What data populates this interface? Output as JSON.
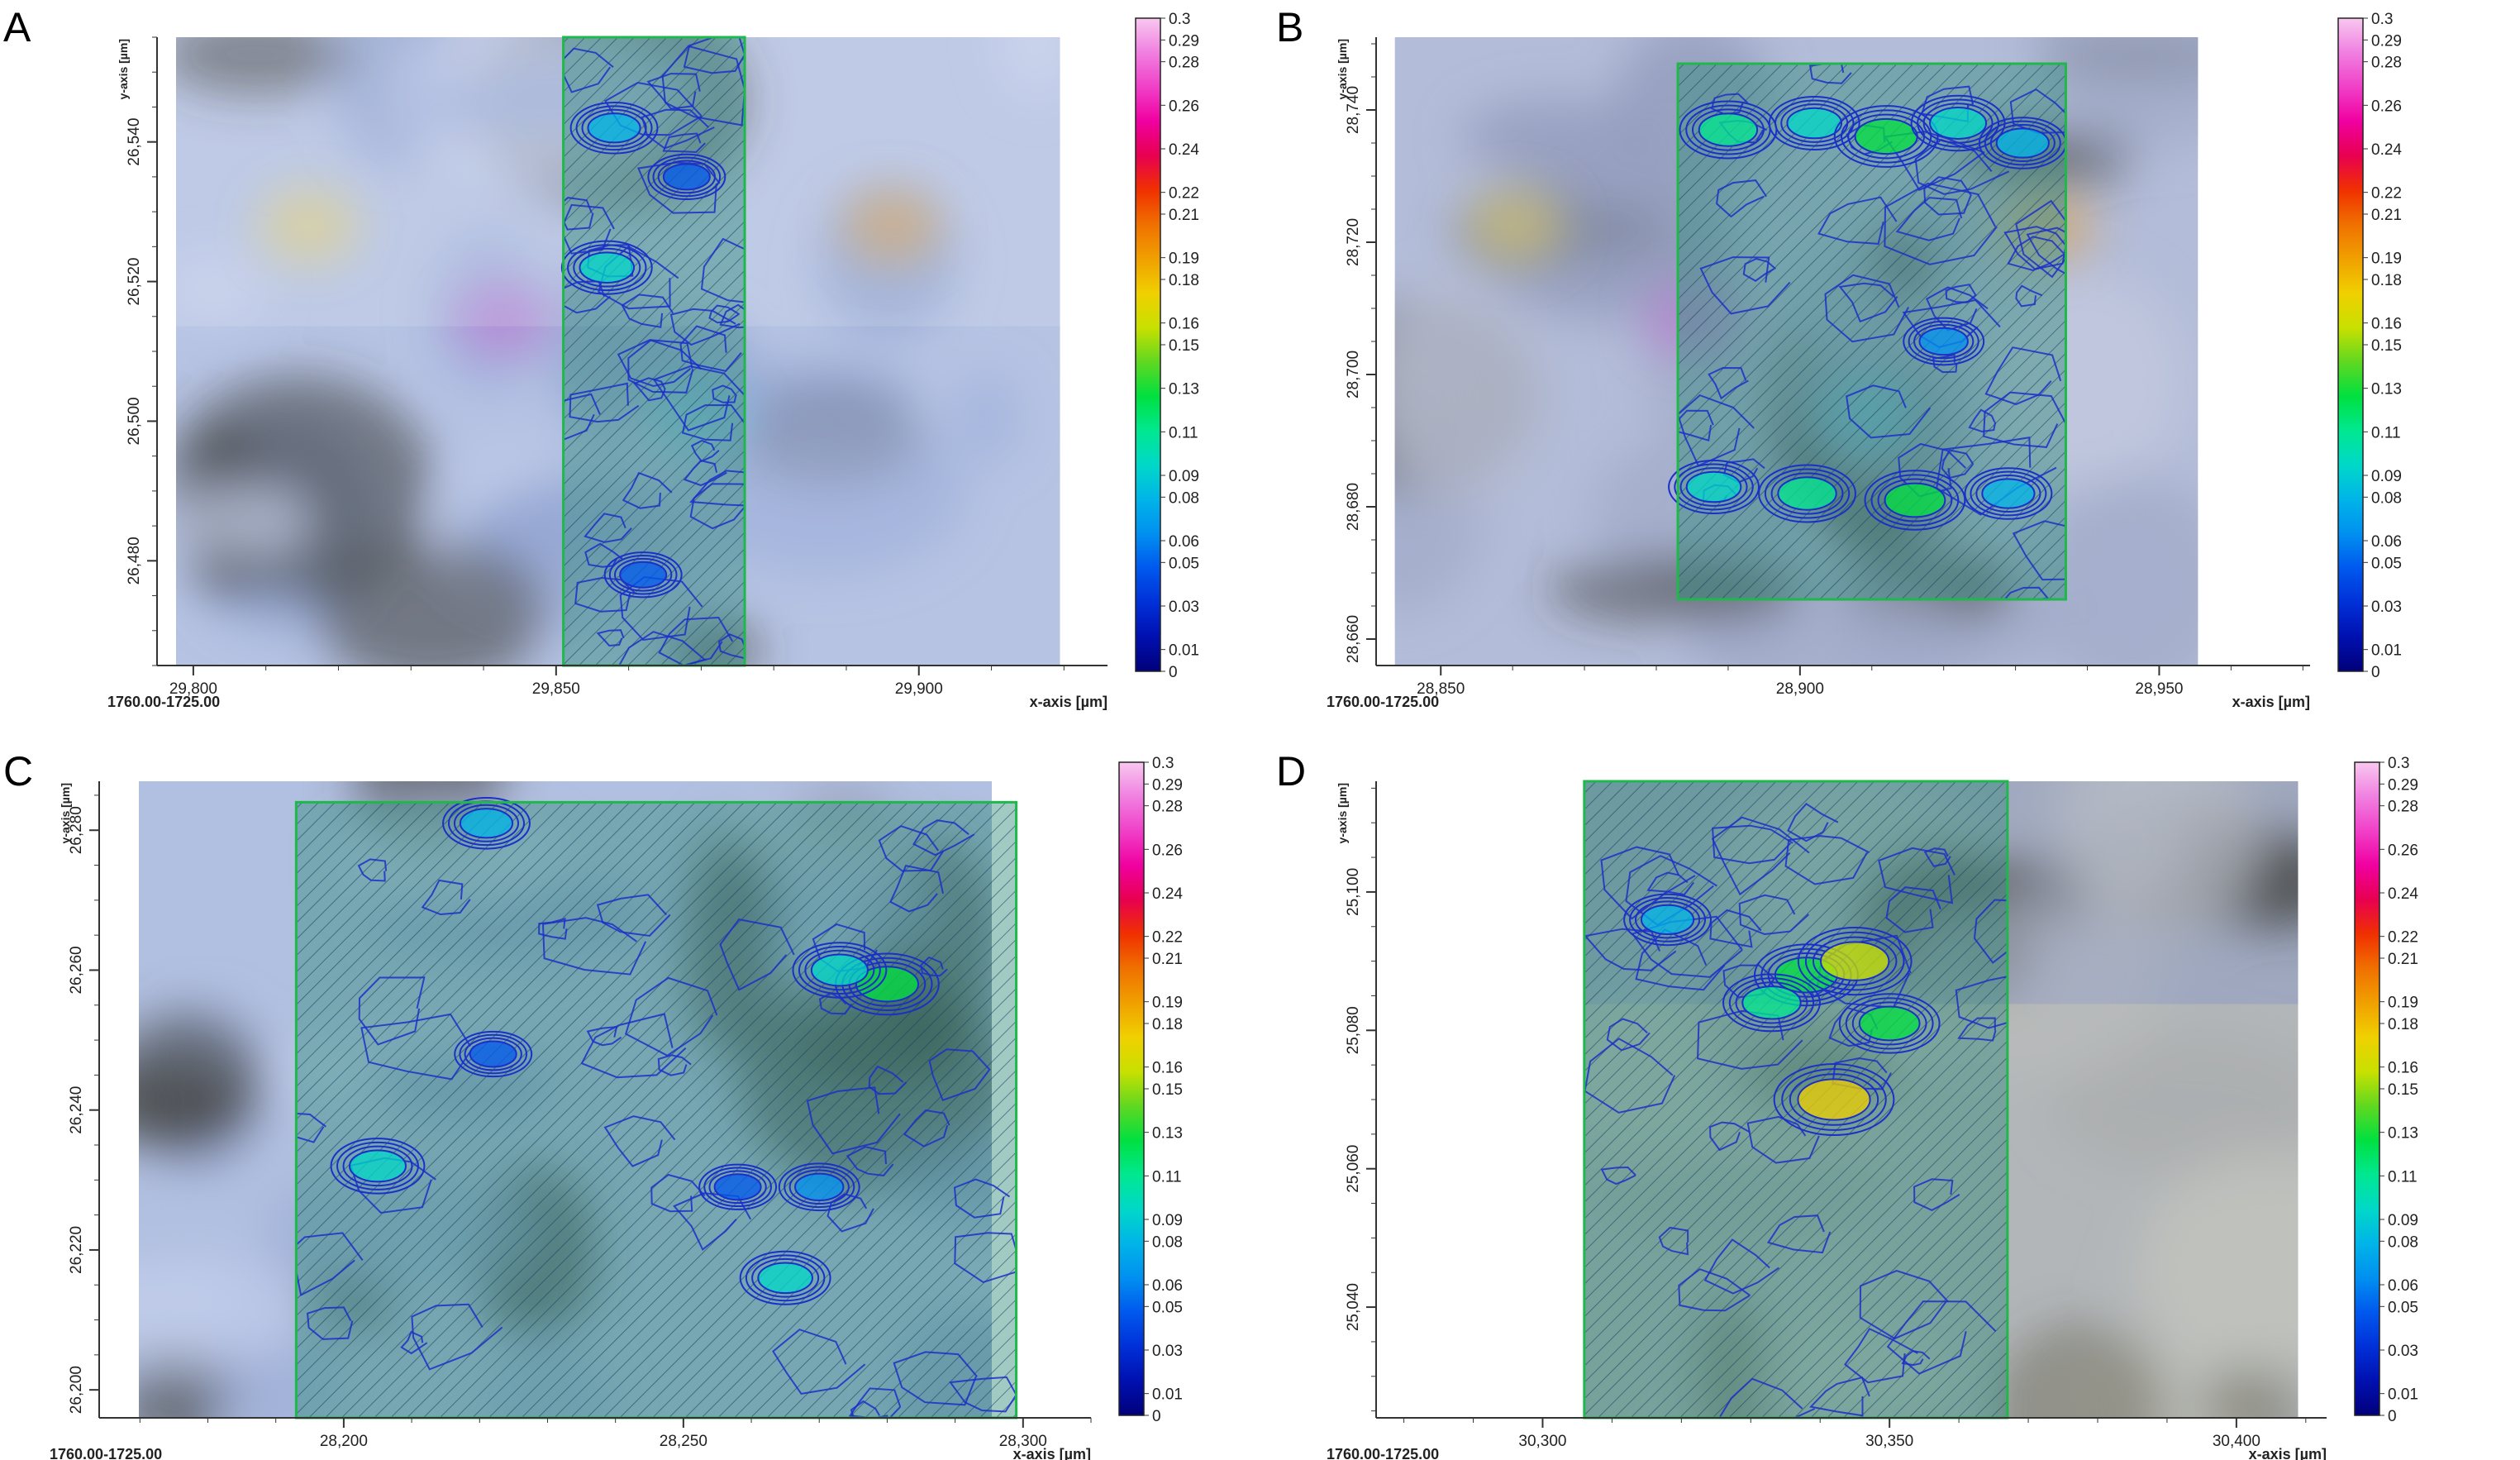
{
  "colorbar": {
    "labels": [
      "0.3",
      "0.29",
      "0.28",
      "0.26",
      "0.24",
      "0.22",
      "0.21",
      "0.19",
      "0.18",
      "0.16",
      "0.15",
      "0.13",
      "0.11",
      "0.09",
      "0.08",
      "0.06",
      "0.05",
      "0.03",
      "0.01",
      "0"
    ],
    "stops": [
      "#00007a",
      "#0010b0",
      "#0030d8",
      "#0058ee",
      "#0090f0",
      "#00b4e8",
      "#00d8c8",
      "#00e890",
      "#00e040",
      "#60d820",
      "#c8e000",
      "#f0d000",
      "#f0a000",
      "#f07000",
      "#f03000",
      "#e80050",
      "#f000a0",
      "#f040c8",
      "#f080e0",
      "#f8c8f0"
    ]
  },
  "chart_data": [
    {
      "type": "heatmap",
      "panel": "A",
      "xlabel": "x-axis [µm]",
      "ylabel": "y-axis [µm]",
      "footer": "1760.00-1725.00",
      "xticks": [
        "29,800",
        "29,850",
        "29,900"
      ],
      "yticks": [
        "26,540",
        "26,520",
        "26,500",
        "26,480"
      ],
      "xlim": [
        29795,
        29926
      ],
      "ylim": [
        26465,
        26555
      ],
      "scale_range": [
        0,
        0.3
      ],
      "hatched_region": {
        "x": [
          29851,
          29876
        ],
        "y": [
          26465,
          26555
        ]
      },
      "hotspots": [
        {
          "x": 29858,
          "y": 26542,
          "value": 0.08
        },
        {
          "x": 29857,
          "y": 26522,
          "value": 0.09
        },
        {
          "x": 29868,
          "y": 26535,
          "value": 0.05
        },
        {
          "x": 29862,
          "y": 26478,
          "value": 0.05
        }
      ]
    },
    {
      "type": "heatmap",
      "panel": "B",
      "xlabel": "x-axis [µm]",
      "ylabel": "y-axis [µm]",
      "footer": "1760.00-1725.00",
      "xticks": [
        "28,850",
        "28,900",
        "28,950"
      ],
      "yticks": [
        "28,740",
        "28,720",
        "28,700",
        "28,680",
        "28,660"
      ],
      "xlim": [
        28841,
        28971
      ],
      "ylim": [
        28656,
        28751
      ],
      "scale_range": [
        0,
        0.3
      ],
      "hatched_region": {
        "x": [
          28883,
          28937
        ],
        "y": [
          28666,
          28747
        ]
      },
      "hotspots": [
        {
          "x": 28890,
          "y": 28737,
          "value": 0.11
        },
        {
          "x": 28902,
          "y": 28738,
          "value": 0.09
        },
        {
          "x": 28912,
          "y": 28736,
          "value": 0.13
        },
        {
          "x": 28922,
          "y": 28738,
          "value": 0.1
        },
        {
          "x": 28931,
          "y": 28735,
          "value": 0.08
        },
        {
          "x": 28888,
          "y": 28683,
          "value": 0.09
        },
        {
          "x": 28901,
          "y": 28682,
          "value": 0.11
        },
        {
          "x": 28916,
          "y": 28681,
          "value": 0.12
        },
        {
          "x": 28929,
          "y": 28682,
          "value": 0.08
        },
        {
          "x": 28920,
          "y": 28705,
          "value": 0.06
        }
      ]
    },
    {
      "type": "heatmap",
      "panel": "C",
      "xlabel": "x-axis [µm]",
      "ylabel": "y-axis [µm]",
      "footer": "1760.00-1725.00",
      "xticks": [
        "28,200",
        "28,250",
        "28,300"
      ],
      "yticks": [
        "26,280",
        "26,260",
        "26,240",
        "26,220",
        "26,200"
      ],
      "xlim": [
        28164,
        28310
      ],
      "ylim": [
        26196,
        26287
      ],
      "scale_range": [
        0,
        0.3
      ],
      "hatched_region": {
        "x": [
          28193,
          28299
        ],
        "y": [
          26196,
          26284
        ]
      },
      "hotspots": [
        {
          "x": 28280,
          "y": 26258,
          "value": 0.13
        },
        {
          "x": 28273,
          "y": 26260,
          "value": 0.1
        },
        {
          "x": 28205,
          "y": 26232,
          "value": 0.1
        },
        {
          "x": 28265,
          "y": 26216,
          "value": 0.09
        },
        {
          "x": 28221,
          "y": 26281,
          "value": 0.08
        },
        {
          "x": 28258,
          "y": 26229,
          "value": 0.05
        },
        {
          "x": 28270,
          "y": 26229,
          "value": 0.06
        },
        {
          "x": 28222,
          "y": 26248,
          "value": 0.05
        }
      ]
    },
    {
      "type": "heatmap",
      "panel": "D",
      "xlabel": "x-axis [µm]",
      "ylabel": "y-axis [µm]",
      "footer": "1760.00-1725.00",
      "xticks": [
        "30,300",
        "30,350",
        "30,400"
      ],
      "yticks": [
        "25,100",
        "25,080",
        "25,060",
        "25,040"
      ],
      "xlim": [
        30276,
        30413
      ],
      "ylim": [
        25024,
        25116
      ],
      "scale_range": [
        0,
        0.3
      ],
      "hatched_region": {
        "x": [
          30306,
          30367
        ],
        "y": [
          25024,
          25116
        ]
      },
      "hotspots": [
        {
          "x": 30338,
          "y": 25088,
          "value": 0.13
        },
        {
          "x": 30345,
          "y": 25090,
          "value": 0.16
        },
        {
          "x": 30333,
          "y": 25084,
          "value": 0.11
        },
        {
          "x": 30350,
          "y": 25081,
          "value": 0.12
        },
        {
          "x": 30342,
          "y": 25070,
          "value": 0.18
        },
        {
          "x": 30318,
          "y": 25096,
          "value": 0.08
        }
      ]
    }
  ]
}
